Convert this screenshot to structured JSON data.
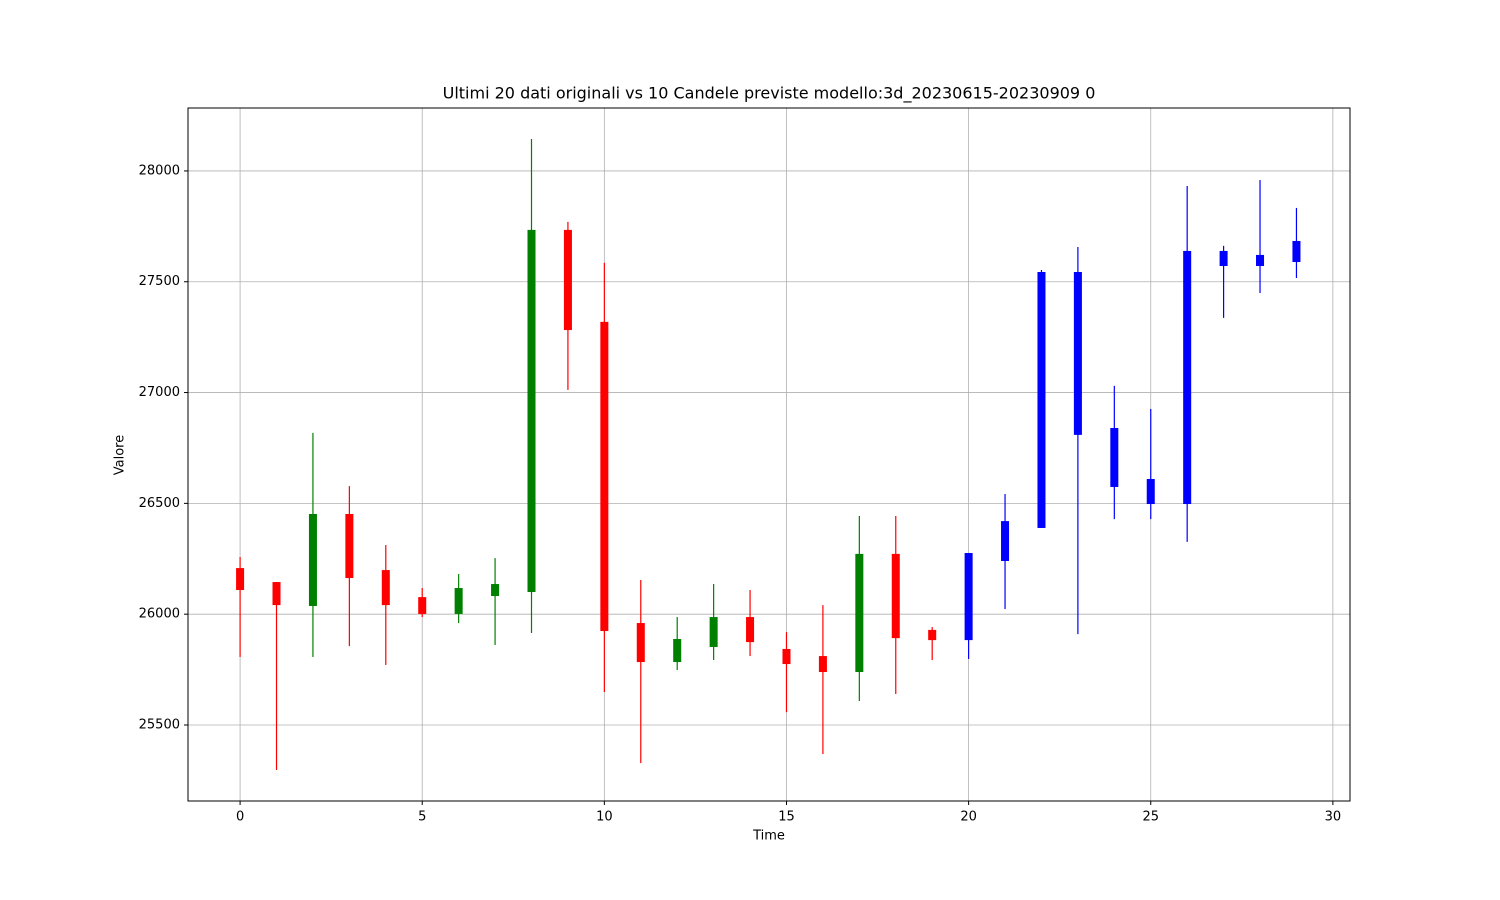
{
  "chart_data": {
    "type": "candlestick",
    "title": "Ultimi 20 dati originali vs 10 Candele previste modello:3d_20230615-20230909 0",
    "x_label": "Time",
    "y_label": "Valore",
    "x": [
      0,
      1,
      2,
      3,
      4,
      5,
      6,
      7,
      8,
      9,
      10,
      11,
      12,
      13,
      14,
      15,
      16,
      17,
      18,
      19,
      20,
      21,
      22,
      23,
      24,
      25,
      26,
      27,
      28,
      29
    ],
    "open": [
      26208,
      26145,
      26037,
      26452,
      26199,
      26077,
      26001,
      26082,
      26100,
      27734,
      27319,
      25960,
      25784,
      25852,
      25987,
      25843,
      25811,
      25739,
      26272,
      25929,
      25883,
      26240,
      26389,
      27544,
      26840,
      26497,
      26497,
      27639,
      27571,
      27589
    ],
    "high": [
      26258,
      26145,
      26818,
      26578,
      26312,
      26118,
      26181,
      26253,
      28144,
      27770,
      27585,
      26154,
      25987,
      26136,
      26109,
      25919,
      26041,
      26443,
      26443,
      25942,
      26276,
      26542,
      27553,
      27657,
      27030,
      26926,
      27932,
      27662,
      27959,
      27833
    ],
    "low": [
      25807,
      25297,
      25807,
      25856,
      25771,
      25987,
      25960,
      25861,
      25915,
      27012,
      25649,
      25328,
      25748,
      25793,
      25811,
      25558,
      25369,
      25608,
      25640,
      25793,
      25798,
      26023,
      26389,
      25910,
      26429,
      26429,
      26326,
      27337,
      27449,
      27517
    ],
    "close": [
      26109,
      26041,
      26452,
      26163,
      26041,
      26001,
      26118,
      26136,
      27734,
      27282,
      25924,
      25784,
      25888,
      25987,
      25874,
      25775,
      25739,
      26272,
      25892,
      25883,
      26276,
      26420,
      27544,
      26809,
      26574,
      26610,
      27639,
      27571,
      27621,
      27684
    ],
    "colors": [
      "red",
      "red",
      "green",
      "red",
      "red",
      "red",
      "green",
      "green",
      "green",
      "red",
      "red",
      "red",
      "green",
      "green",
      "red",
      "red",
      "red",
      "green",
      "red",
      "red",
      "blue",
      "blue",
      "blue",
      "blue",
      "blue",
      "blue",
      "blue",
      "blue",
      "blue",
      "blue"
    ],
    "xlim": [
      -1.43,
      30.47
    ],
    "ylim": [
      25157,
      28284
    ],
    "xticks": [
      0,
      5,
      10,
      15,
      20,
      25,
      30
    ],
    "yticks": [
      25500,
      26000,
      26500,
      27000,
      27500,
      28000
    ],
    "grid": true
  }
}
